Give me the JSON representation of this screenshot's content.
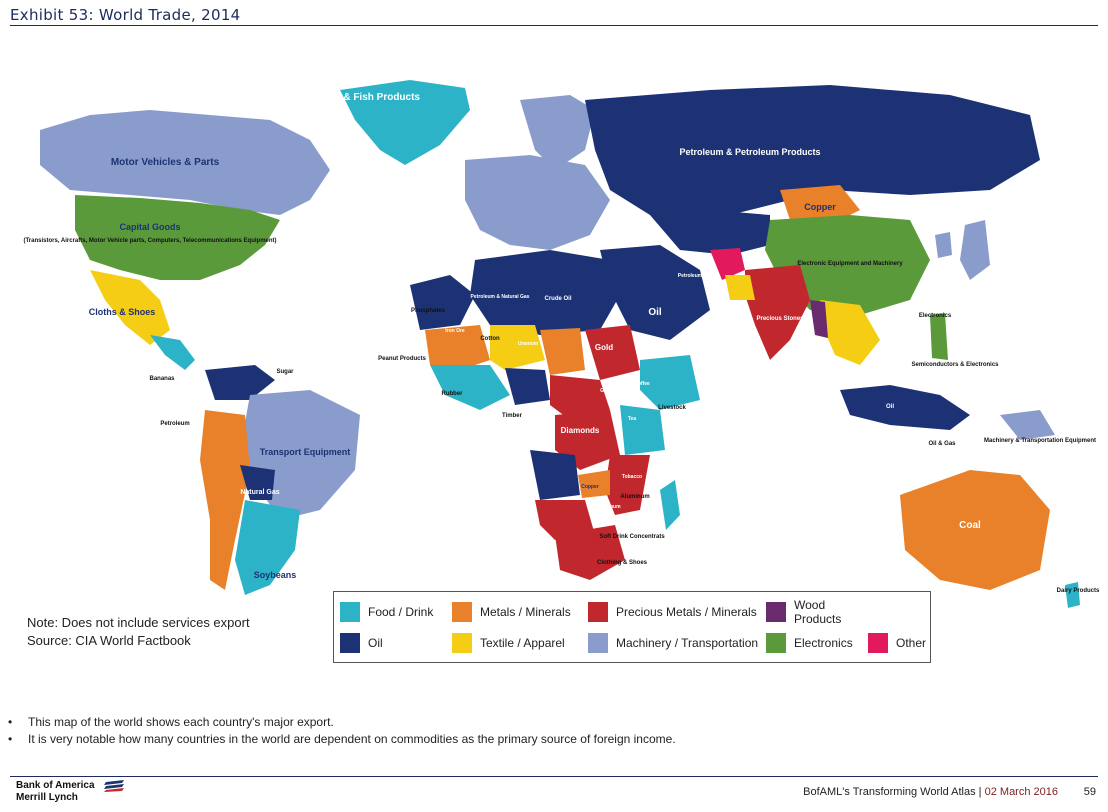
{
  "header": {
    "title": "Exhibit 53: World Trade, 2014"
  },
  "colors": {
    "food_drink": "#2db3c8",
    "metals_minerals": "#e8812a",
    "precious_metals": "#c1282d",
    "wood_products": "#6a2a6e",
    "oil": "#1c3274",
    "textile_apparel": "#f4cd14",
    "machinery": "#8a9ccc",
    "electronics": "#5a9a3b",
    "other": "#e2195d"
  },
  "map_labels": {
    "fish": "Fish & Fish Products",
    "motor_vehicles": "Motor Vehicles & Parts",
    "capital_goods": "Capital Goods",
    "capital_goods_detail": "(Transistors, Aircrafts, Motor Vehicle parts, Computers, Telecommunications Equipment)",
    "cloths_shoes": "Cloths & Shoes",
    "transport_equipment": "Transport Equipment",
    "natural_gas": "Natural Gas",
    "soybeans": "Soybeans",
    "petroleum_products_russia": "Petroleum & Petroleum Products",
    "copper_kz": "Copper",
    "electronic_china": "Electronic Equipment and Machinery",
    "precious_stones": "Precious Stones",
    "coal": "Coal",
    "oil_saudi": "Oil",
    "gold": "Gold",
    "diamonds": "Diamonds",
    "crude_oil": "Crude Oil",
    "petroleum_ng": "Petroleum & Natural Gas",
    "cotton": "Cotton",
    "uranium": "Uranium",
    "iron_ore": "Iron Ore",
    "petroleum": "Petroleum",
    "copper_sa": "Copper",
    "electronics": "Electronics",
    "semiconductors": "Semiconductors & Electronics",
    "oil_gas": "Oil & Gas",
    "machinery_transport": "Machinery & Transportation Equipment",
    "dairy": "Dairy Products",
    "coffee": "Coffee",
    "tea": "Tea",
    "platinum": "Platinum",
    "soft_drink": "Soft Drink Concentrats",
    "clothing_shoes_sa": "Clothing & Shoes",
    "aluminum": "Aluminum",
    "sugar": "Sugar",
    "bananas": "Bananas",
    "petroleum_ec": "Petroleum",
    "phosphates": "Phosphates",
    "peanut": "Peanut Products",
    "rubber": "Rubber",
    "timber": "Timber",
    "livestock": "Livestock",
    "grains": "Grains",
    "tobacco": "Tobacco",
    "oil_sea": "Oil"
  },
  "note": {
    "line1": "Note: Does not include services export",
    "line2": "Source: CIA World Factbook"
  },
  "legend": [
    {
      "label": "Food / Drink",
      "color": "#2db3c8"
    },
    {
      "label": "Metals / Minerals",
      "color": "#e8812a"
    },
    {
      "label": "Precious Metals / Minerals",
      "color": "#c1282d"
    },
    {
      "label": "Wood Products",
      "color": "#6a2a6e"
    },
    {
      "label": "",
      "color": ""
    },
    {
      "label": "Oil",
      "color": "#1c3274"
    },
    {
      "label": "Textile / Apparel",
      "color": "#f4cd14"
    },
    {
      "label": "Machinery / Transportation",
      "color": "#8a9ccc"
    },
    {
      "label": "Electronics",
      "color": "#5a9a3b"
    },
    {
      "label": "Other",
      "color": "#e2195d"
    }
  ],
  "bullets": [
    "This map of the world shows each country's major export.",
    "It is very notable how many countries in the world are dependent on commodities as the primary source of foreign income."
  ],
  "footer": {
    "logo_line1": "Bank of America",
    "logo_line2": "Merrill Lynch",
    "publication": "BofAML's Transforming World Atlas",
    "date": "02 March 2016",
    "page": "59"
  }
}
